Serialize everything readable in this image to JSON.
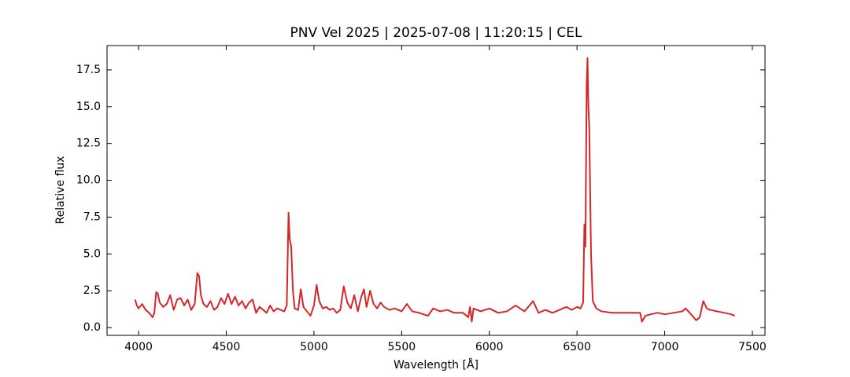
{
  "chart_data": {
    "type": "line",
    "title": "PNV Vel 2025 | 2025-07-08 | 11:20:15 | CEL",
    "xlabel": "Wavelength [Å]",
    "ylabel": "Relative flux",
    "xlim": [
      3820,
      7572
    ],
    "ylim": [
      -0.53,
      19.15
    ],
    "xticks": [
      4000,
      4500,
      5000,
      5500,
      6000,
      6500,
      7000,
      7500
    ],
    "yticks": [
      {
        "value": 0,
        "label": "0.0"
      },
      2.5,
      {
        "value": 5,
        "label": "5.0"
      },
      7.5,
      {
        "value": 10,
        "label": "10.0"
      },
      12.5,
      {
        "value": 15,
        "label": "15.0"
      },
      17.5
    ],
    "grid": false,
    "series": [
      {
        "name": "PNV Vel 2025",
        "color": "#d62728",
        "x": [
          3980,
          3990,
          4000,
          4020,
          4040,
          4060,
          4080,
          4090,
          4100,
          4110,
          4120,
          4140,
          4160,
          4180,
          4200,
          4220,
          4240,
          4260,
          4280,
          4300,
          4320,
          4335,
          4345,
          4355,
          4370,
          4390,
          4410,
          4430,
          4450,
          4470,
          4490,
          4510,
          4530,
          4550,
          4570,
          4590,
          4610,
          4630,
          4650,
          4670,
          4690,
          4710,
          4730,
          4750,
          4770,
          4790,
          4810,
          4830,
          4845,
          4855,
          4862,
          4870,
          4880,
          4890,
          4910,
          4925,
          4940,
          4960,
          4980,
          5000,
          5015,
          5030,
          5050,
          5070,
          5090,
          5110,
          5130,
          5150,
          5170,
          5190,
          5210,
          5230,
          5250,
          5270,
          5285,
          5300,
          5320,
          5340,
          5360,
          5380,
          5400,
          5430,
          5460,
          5500,
          5530,
          5560,
          5600,
          5650,
          5680,
          5720,
          5760,
          5800,
          5850,
          5880,
          5890,
          5900,
          5910,
          5950,
          6000,
          6050,
          6100,
          6150,
          6200,
          6250,
          6280,
          6320,
          6360,
          6400,
          6440,
          6470,
          6500,
          6520,
          6535,
          6542,
          6548,
          6555,
          6560,
          6565,
          6570,
          6580,
          6590,
          6610,
          6640,
          6700,
          6760,
          6820,
          6860,
          6870,
          6890,
          6920,
          6960,
          7000,
          7050,
          7100,
          7120,
          7150,
          7180,
          7200,
          7220,
          7240,
          7260,
          7300,
          7340,
          7380,
          7400
        ],
        "values": [
          1.9,
          1.5,
          1.3,
          1.6,
          1.2,
          1.0,
          0.7,
          1.0,
          2.4,
          2.3,
          1.7,
          1.4,
          1.6,
          2.2,
          1.2,
          1.9,
          2.0,
          1.5,
          1.9,
          1.2,
          1.6,
          3.7,
          3.5,
          2.2,
          1.6,
          1.4,
          1.8,
          1.2,
          1.4,
          2.0,
          1.6,
          2.3,
          1.6,
          2.1,
          1.5,
          1.8,
          1.3,
          1.7,
          1.9,
          1.0,
          1.4,
          1.2,
          1.0,
          1.5,
          1.1,
          1.3,
          1.2,
          1.1,
          1.5,
          7.8,
          6.0,
          5.5,
          2.5,
          1.3,
          1.2,
          2.6,
          1.4,
          1.1,
          0.8,
          1.5,
          2.9,
          1.8,
          1.3,
          1.4,
          1.2,
          1.3,
          1.0,
          1.2,
          2.8,
          1.7,
          1.3,
          2.2,
          1.1,
          2.1,
          2.6,
          1.4,
          2.5,
          1.6,
          1.3,
          1.7,
          1.4,
          1.2,
          1.3,
          1.1,
          1.6,
          1.1,
          1.0,
          0.8,
          1.3,
          1.1,
          1.2,
          1.0,
          1.0,
          0.7,
          1.4,
          0.4,
          1.3,
          1.1,
          1.3,
          1.0,
          1.1,
          1.5,
          1.1,
          1.8,
          1.0,
          1.2,
          1.0,
          1.2,
          1.4,
          1.2,
          1.4,
          1.3,
          1.7,
          7.0,
          5.5,
          16.5,
          18.3,
          15.0,
          13.5,
          5.0,
          1.8,
          1.3,
          1.1,
          1.0,
          1.0,
          1.0,
          1.0,
          0.4,
          0.8,
          0.9,
          1.0,
          0.9,
          1.0,
          1.1,
          1.3,
          0.9,
          0.5,
          0.7,
          1.8,
          1.3,
          1.2,
          1.1,
          1.0,
          0.9,
          0.8
        ]
      }
    ]
  }
}
